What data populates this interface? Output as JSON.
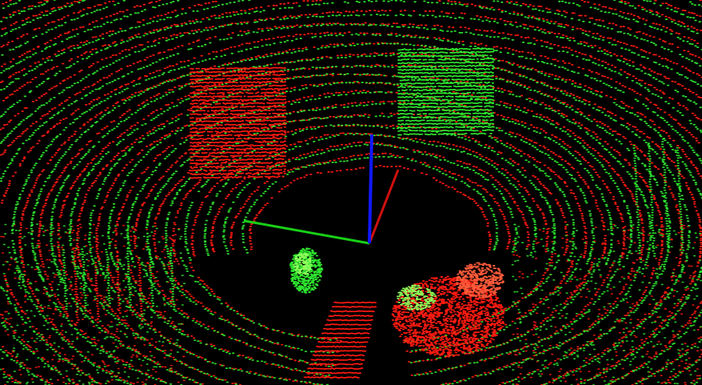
{
  "viewer": {
    "background_color": "#000000",
    "cloud_a_color": "#ff1a10",
    "cloud_b_color": "#2ee62e",
    "cloud_a_highlight": "#ff5a3a",
    "cloud_b_highlight": "#8cff5a"
  },
  "axes": {
    "x_axis_color": "#d01010",
    "y_axis_color": "#18d018",
    "z_axis_color": "#1018ff"
  }
}
